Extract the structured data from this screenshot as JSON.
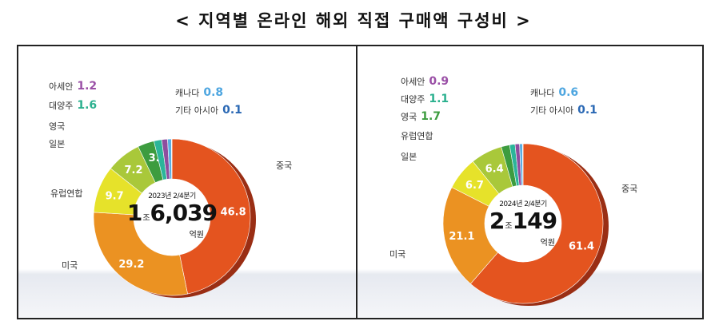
{
  "title": "< 지역별 온라인 해외 직접 구매액 구성비 >",
  "chart_data": [
    {
      "type": "pie",
      "subtitle": "2023년 2/4분기",
      "total_major": "1",
      "total_major_unit": "조",
      "total_minor": "6,039",
      "total_unit": "억원",
      "slices": [
        {
          "name": "중국",
          "value": 46.8,
          "color": "#e4541f"
        },
        {
          "name": "미국",
          "value": 29.2,
          "color": "#eb9222"
        },
        {
          "name": "유럽연합",
          "value": 9.7,
          "color": "#e6e22a"
        },
        {
          "name": "일본",
          "value": 7.2,
          "color": "#a9c83a"
        },
        {
          "name": "영국",
          "value": 3.4,
          "color": "#3d9c3f"
        },
        {
          "name": "대양주",
          "value": 1.6,
          "color": "#2cb59a"
        },
        {
          "name": "아세안",
          "value": 1.2,
          "color": "#8e4d9e"
        },
        {
          "name": "캐나다",
          "value": 0.8,
          "color": "#5aaee2"
        },
        {
          "name": "기타 아시아",
          "value": 0.1,
          "color": "#2a68b4"
        }
      ]
    },
    {
      "type": "pie",
      "subtitle": "2024년 2/4분기",
      "total_major": "2",
      "total_major_unit": "조",
      "total_minor": "149",
      "total_unit": "억원",
      "slices": [
        {
          "name": "중국",
          "value": 61.4,
          "color": "#e4541f"
        },
        {
          "name": "미국",
          "value": 21.1,
          "color": "#eb9222"
        },
        {
          "name": "일본",
          "value": 6.7,
          "color": "#e6e22a"
        },
        {
          "name": "유럽연합",
          "value": 6.4,
          "color": "#a9c83a"
        },
        {
          "name": "영국",
          "value": 1.7,
          "color": "#3d9c3f"
        },
        {
          "name": "대양주",
          "value": 1.1,
          "color": "#2cb59a"
        },
        {
          "name": "아세안",
          "value": 0.9,
          "color": "#8e4d9e"
        },
        {
          "name": "캐나다",
          "value": 0.6,
          "color": "#5aaee2"
        },
        {
          "name": "기타 아시아",
          "value": 0.1,
          "color": "#2a68b4"
        }
      ]
    }
  ]
}
